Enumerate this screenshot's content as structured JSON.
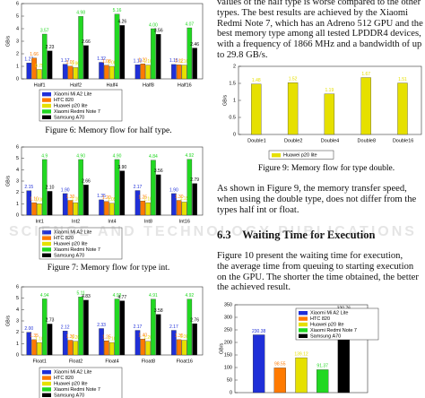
{
  "chart_data": [
    {
      "type": "bar",
      "ylabel": "GB/s",
      "categories": [
        "Half1",
        "Half2",
        "Half4",
        "Half8",
        "Half16"
      ],
      "ylim": [
        0,
        6
      ],
      "yticks": [
        0,
        1,
        2,
        3,
        4,
        5,
        6
      ],
      "legend": "below",
      "series": [
        {
          "name": "Xiaomi Mi A2 Lite",
          "color": "#1f2fd8",
          "values": [
            1.27,
            1.17,
            1.32,
            1.13,
            1.15
          ],
          "value_labels": [
            "1.27",
            "1.17",
            "1.32",
            "1.13",
            "1.15"
          ]
        },
        {
          "name": "HTC 820",
          "color": "#ff7a00",
          "values": [
            1.66,
            1.01,
            1.08,
            1.2,
            1.12
          ],
          "value_labels": [
            "1.66",
            "1.01",
            "1.08",
            "1.20",
            "1.12"
          ]
        },
        {
          "name": "Huawei p20 lite",
          "color": "#e6e000",
          "values": [
            0.75,
            0.9,
            1.0,
            1.1,
            1.1
          ],
          "value_labels": [
            "0.75",
            "0.90",
            "1.00",
            "1.10",
            "1.10"
          ]
        },
        {
          "name": "Xiaomi Redmi Note 7",
          "color": "#22d822",
          "values": [
            3.57,
            4.98,
            5.16,
            4.0,
            4.07
          ],
          "value_labels": [
            "3.57",
            "4.98",
            "5.16",
            "4.00",
            "4.07"
          ]
        },
        {
          "name": "Samsung A70",
          "color": "#000000",
          "values": [
            2.23,
            2.66,
            4.26,
            3.56,
            2.46
          ],
          "value_labels": [
            "2.23",
            "2.66",
            "4.26",
            "3.56",
            "2.46"
          ]
        }
      ],
      "caption": "Figure 6: Memory flow for half type."
    },
    {
      "type": "bar",
      "ylabel": "GB/s",
      "categories": [
        "Int1",
        "Int2",
        "Int4",
        "Int8",
        "Int16"
      ],
      "ylim": [
        0,
        6
      ],
      "yticks": [
        0,
        1,
        2,
        3,
        4,
        5,
        6
      ],
      "legend": "below",
      "series": [
        {
          "name": "Xiaomi Mi A2 Lite",
          "color": "#1f2fd8",
          "values": [
            2.15,
            1.9,
            1.35,
            2.17,
            1.9
          ],
          "value_labels": [
            "2.15",
            "1.90",
            "1.35",
            "2.17",
            "1.90"
          ]
        },
        {
          "name": "HTC 820",
          "color": "#ff7a00",
          "values": [
            1.1,
            1.3,
            1.2,
            1.25,
            1.3
          ],
          "value_labels": [
            "1.10",
            "1.30",
            "1.20",
            "1.25",
            "1.30"
          ]
        },
        {
          "name": "Huawei p20 lite",
          "color": "#e6e000",
          "values": [
            1.0,
            1.1,
            1.05,
            1.1,
            1.15
          ],
          "value_labels": [
            "1.00",
            "1.10",
            "1.05",
            "1.10",
            "1.15"
          ]
        },
        {
          "name": "Xiaomi Redmi Note 7",
          "color": "#22d822",
          "values": [
            4.9,
            4.9,
            4.9,
            4.84,
            4.92
          ],
          "value_labels": [
            "4.9",
            "4.90",
            "4.90",
            "4.84",
            "4.92"
          ]
        },
        {
          "name": "Samsung A70",
          "color": "#000000",
          "values": [
            2.1,
            2.66,
            3.9,
            3.56,
            2.79
          ],
          "value_labels": [
            "2.10",
            "2.66",
            "3.90",
            "3.56",
            "2.79"
          ]
        }
      ],
      "caption": "Figure 7: Memory flow for type int."
    },
    {
      "type": "bar",
      "ylabel": "GB/s",
      "categories": [
        "Float1",
        "Float2",
        "Float4",
        "Float8",
        "Float16"
      ],
      "ylim": [
        0,
        6
      ],
      "yticks": [
        0,
        1,
        2,
        3,
        4,
        5,
        6
      ],
      "legend": "below",
      "series": [
        {
          "name": "Xiaomi Mi A2 Lite",
          "color": "#1f2fd8",
          "values": [
            2.0,
            2.12,
            2.33,
            2.17,
            2.17
          ],
          "value_labels": [
            "2.00",
            "2.12",
            "2.33",
            "2.17",
            "2.17"
          ]
        },
        {
          "name": "HTC 820",
          "color": "#ff7a00",
          "values": [
            1.35,
            1.3,
            1.25,
            1.4,
            1.35
          ],
          "value_labels": [
            "1.35",
            "1.30",
            "1.25",
            "1.40",
            "1.35"
          ]
        },
        {
          "name": "Huawei p20 lite",
          "color": "#e6e000",
          "values": [
            1.1,
            1.2,
            1.1,
            1.2,
            1.3
          ],
          "value_labels": [
            "1.10",
            "1.20",
            "1.10",
            "1.20",
            "1.30"
          ]
        },
        {
          "name": "Xiaomi Redmi Note 7",
          "color": "#22d822",
          "values": [
            4.94,
            5.11,
            4.93,
            4.91,
            4.92
          ],
          "value_labels": [
            "4.94",
            "5.11",
            "4.93",
            "4.91",
            "4.92"
          ]
        },
        {
          "name": "Samsung A70",
          "color": "#000000",
          "values": [
            2.73,
            4.83,
            4.77,
            3.58,
            2.76
          ],
          "value_labels": [
            "2.73",
            "4.83",
            "4.77",
            "3.58",
            "2.76"
          ]
        }
      ]
    },
    {
      "type": "bar",
      "ylabel": "GB/s",
      "categories": [
        "Double1",
        "Double2",
        "Double4",
        "Double8",
        "Double16"
      ],
      "ylim": [
        0,
        2
      ],
      "yticks": [
        0,
        0.5,
        1,
        1.5,
        2
      ],
      "legend": "below",
      "series": [
        {
          "name": "Huawei p20 lite",
          "color": "#e6e000",
          "values": [
            1.48,
            1.52,
            1.19,
            1.67,
            1.51
          ]
        }
      ],
      "caption": "Figure 9: Memory flow for type double."
    },
    {
      "type": "bar",
      "ylabel": "GB/s",
      "categories": [
        null
      ],
      "ylim": [
        0,
        350
      ],
      "yticks": [
        0,
        50,
        100,
        150,
        200,
        250,
        300,
        350
      ],
      "legend": "upper right",
      "series": [
        {
          "name": "Xiaomi Mi A2 Lite",
          "color": "#1f2fd8",
          "values": [
            230.38
          ]
        },
        {
          "name": "HTC 820",
          "color": "#ff7a00",
          "values": [
            98.55
          ]
        },
        {
          "name": "Huawei p20 lite",
          "color": "#e6e000",
          "values": [
            139.12
          ]
        },
        {
          "name": "Xiaomi Redmi Note 7",
          "color": "#22d822",
          "values": [
            91.37
          ]
        },
        {
          "name": "Samsung A70",
          "color": "#000000",
          "values": [
            320.76
          ]
        }
      ]
    }
  ],
  "paragraphs": [
    [
      "values of the half type is worse compared to the other",
      "types. The best results are achieved by the Xiaomi",
      "Redmi Note 7, which has an Adreno 512 GPU and the",
      "best memory type among all tested LPDDR4 devices,",
      "with a frequency of 1866 MHz and a bandwidth of up",
      "to 29.8 GB/s."
    ],
    [
      "As shown in Figure 9, the memory transfer speed,",
      "when using the double type, does not differ from the",
      "types half int or float."
    ],
    [
      "Figure 10 present the waiting time for execution,",
      "the average time from queuing to starting execution",
      "on the GPU. The shorter the time obtained, the better",
      "the achieved result."
    ]
  ],
  "heading": {
    "number": "6.3",
    "title": "Waiting Time for Execution"
  },
  "watermark": "SCIENCE AND TECHNOLOGY PUBLICATIONS"
}
